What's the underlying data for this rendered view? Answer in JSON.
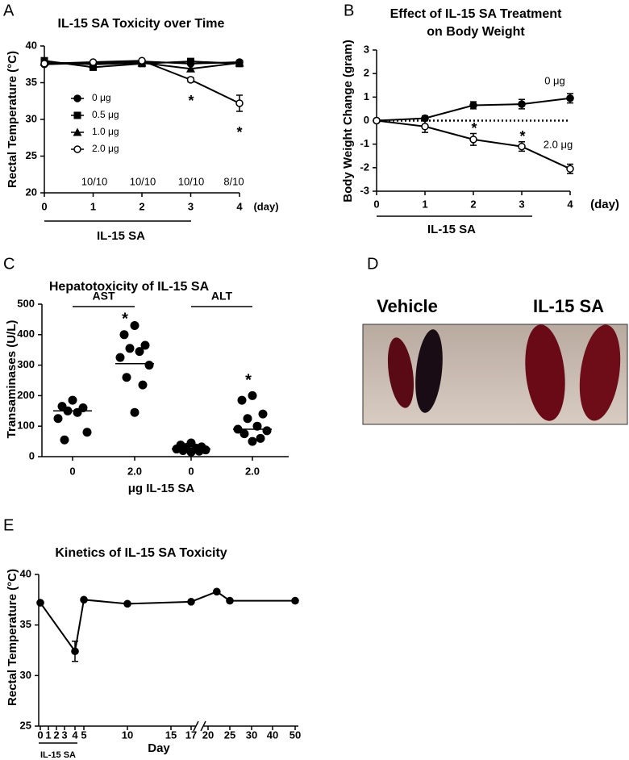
{
  "chart_data": [
    {
      "panel": "A",
      "type": "line",
      "title": "IL-15 SA Toxicity over Time",
      "y_label": "Rectal Temperature (°C)",
      "x": [
        0,
        1,
        2,
        3,
        4
      ],
      "xlim": [
        0,
        4
      ],
      "xticks": [
        0,
        1,
        2,
        3,
        4
      ],
      "ylim": [
        20,
        40
      ],
      "yticks": [
        20,
        25,
        30,
        35,
        40
      ],
      "legend": "center left",
      "series": [
        {
          "name": "0 μg",
          "color": "#000000",
          "marker": "circle",
          "values": [
            37.5,
            37.7,
            37.9,
            37.6,
            37.8
          ]
        },
        {
          "name": "0.5 μg",
          "color": "#000000",
          "marker": "square",
          "values": [
            38.0,
            37.1,
            37.6,
            37.9,
            37.6
          ]
        },
        {
          "name": "1.0 μg",
          "color": "#000000",
          "marker": "triangle",
          "values": [
            37.8,
            37.5,
            37.7,
            36.9,
            37.7
          ]
        },
        {
          "name": "2.0 μg",
          "color": "#000000",
          "marker": "open-circle",
          "values": [
            37.6,
            37.8,
            38.0,
            35.4,
            32.2
          ],
          "errors": [
            null,
            null,
            null,
            0.3,
            1.1
          ]
        }
      ],
      "annotations": [
        "10/10",
        "10/10",
        "10/10",
        "8/10",
        "*",
        "*",
        "(day)",
        "IL-15 SA"
      ]
    },
    {
      "panel": "B",
      "type": "line",
      "title": [
        "Effect of IL-15 SA Treatment",
        "on Body Weight"
      ],
      "y_label": "Body Weight Change (gram)",
      "x": [
        0,
        1,
        2,
        3,
        4
      ],
      "xlim": [
        0,
        4
      ],
      "xticks": [
        0,
        1,
        2,
        3,
        4
      ],
      "ylim": [
        -3,
        3
      ],
      "yticks": [
        -3,
        -2,
        -1,
        0,
        1,
        2,
        3
      ],
      "zero_line": true,
      "legend": "inline",
      "series": [
        {
          "name": "0 μg",
          "color": "#000000",
          "marker": "circle",
          "values": [
            0,
            0.1,
            0.65,
            0.7,
            0.95
          ],
          "errors": [
            null,
            0.1,
            0.15,
            0.2,
            0.2
          ]
        },
        {
          "name": "2.0 μg",
          "color": "#000000",
          "marker": "open-circle",
          "values": [
            0,
            -0.25,
            -0.8,
            -1.1,
            -2.05
          ],
          "errors": [
            null,
            0.25,
            0.25,
            0.2,
            0.2
          ]
        }
      ],
      "annotations": [
        "*",
        "*",
        "(day)",
        "IL-15 SA"
      ]
    },
    {
      "panel": "C",
      "type": "dot",
      "title": "Hepatotoxicity of IL-15 SA",
      "y_label": "Transaminases (U/L)",
      "x_label": "μg IL-15 SA",
      "categories": [
        "0",
        "2.0",
        "0",
        "2.0"
      ],
      "groups": [
        "AST",
        "ALT"
      ],
      "ylim": [
        0,
        500
      ],
      "yticks": [
        0,
        100,
        200,
        300,
        400,
        500
      ],
      "color": "#000000",
      "values": [
        [
          185,
          165,
          160,
          150,
          145,
          125,
          80,
          55
        ],
        [
          430,
          400,
          365,
          355,
          345,
          325,
          300,
          260,
          235,
          145
        ],
        [
          45,
          38,
          32,
          30,
          28,
          25,
          22,
          20,
          18,
          15
        ],
        [
          200,
          185,
          140,
          125,
          100,
          90,
          85,
          75,
          60,
          50
        ]
      ],
      "medians": [
        150,
        305,
        25,
        90
      ],
      "annotations": [
        "*",
        "*"
      ]
    },
    {
      "panel": "D",
      "type": "photo",
      "labels": [
        "Vehicle",
        "IL-15 SA"
      ]
    },
    {
      "panel": "E",
      "type": "line",
      "title": "Kinetics of IL-15 SA Toxicity",
      "y_label": "Rectal Temperature (°C)",
      "x_label": "Day",
      "x": [
        0,
        4,
        5,
        10,
        17,
        22,
        25,
        50
      ],
      "xlim": [
        0,
        50
      ],
      "xticks": [
        0,
        1,
        2,
        3,
        4,
        5,
        10,
        15,
        17,
        20,
        25,
        30,
        40,
        50
      ],
      "axis_break": true,
      "ylim": [
        25,
        40
      ],
      "yticks": [
        25,
        30,
        35,
        40
      ],
      "series": [
        {
          "color": "#000000",
          "marker": "circle",
          "values": [
            37.2,
            32.4,
            37.5,
            37.1,
            37.3,
            38.3,
            37.4,
            37.4
          ],
          "errors": [
            null,
            1.0,
            null,
            null,
            null,
            null,
            null,
            null
          ]
        }
      ],
      "annotations": [
        "IL-15 SA"
      ]
    }
  ]
}
